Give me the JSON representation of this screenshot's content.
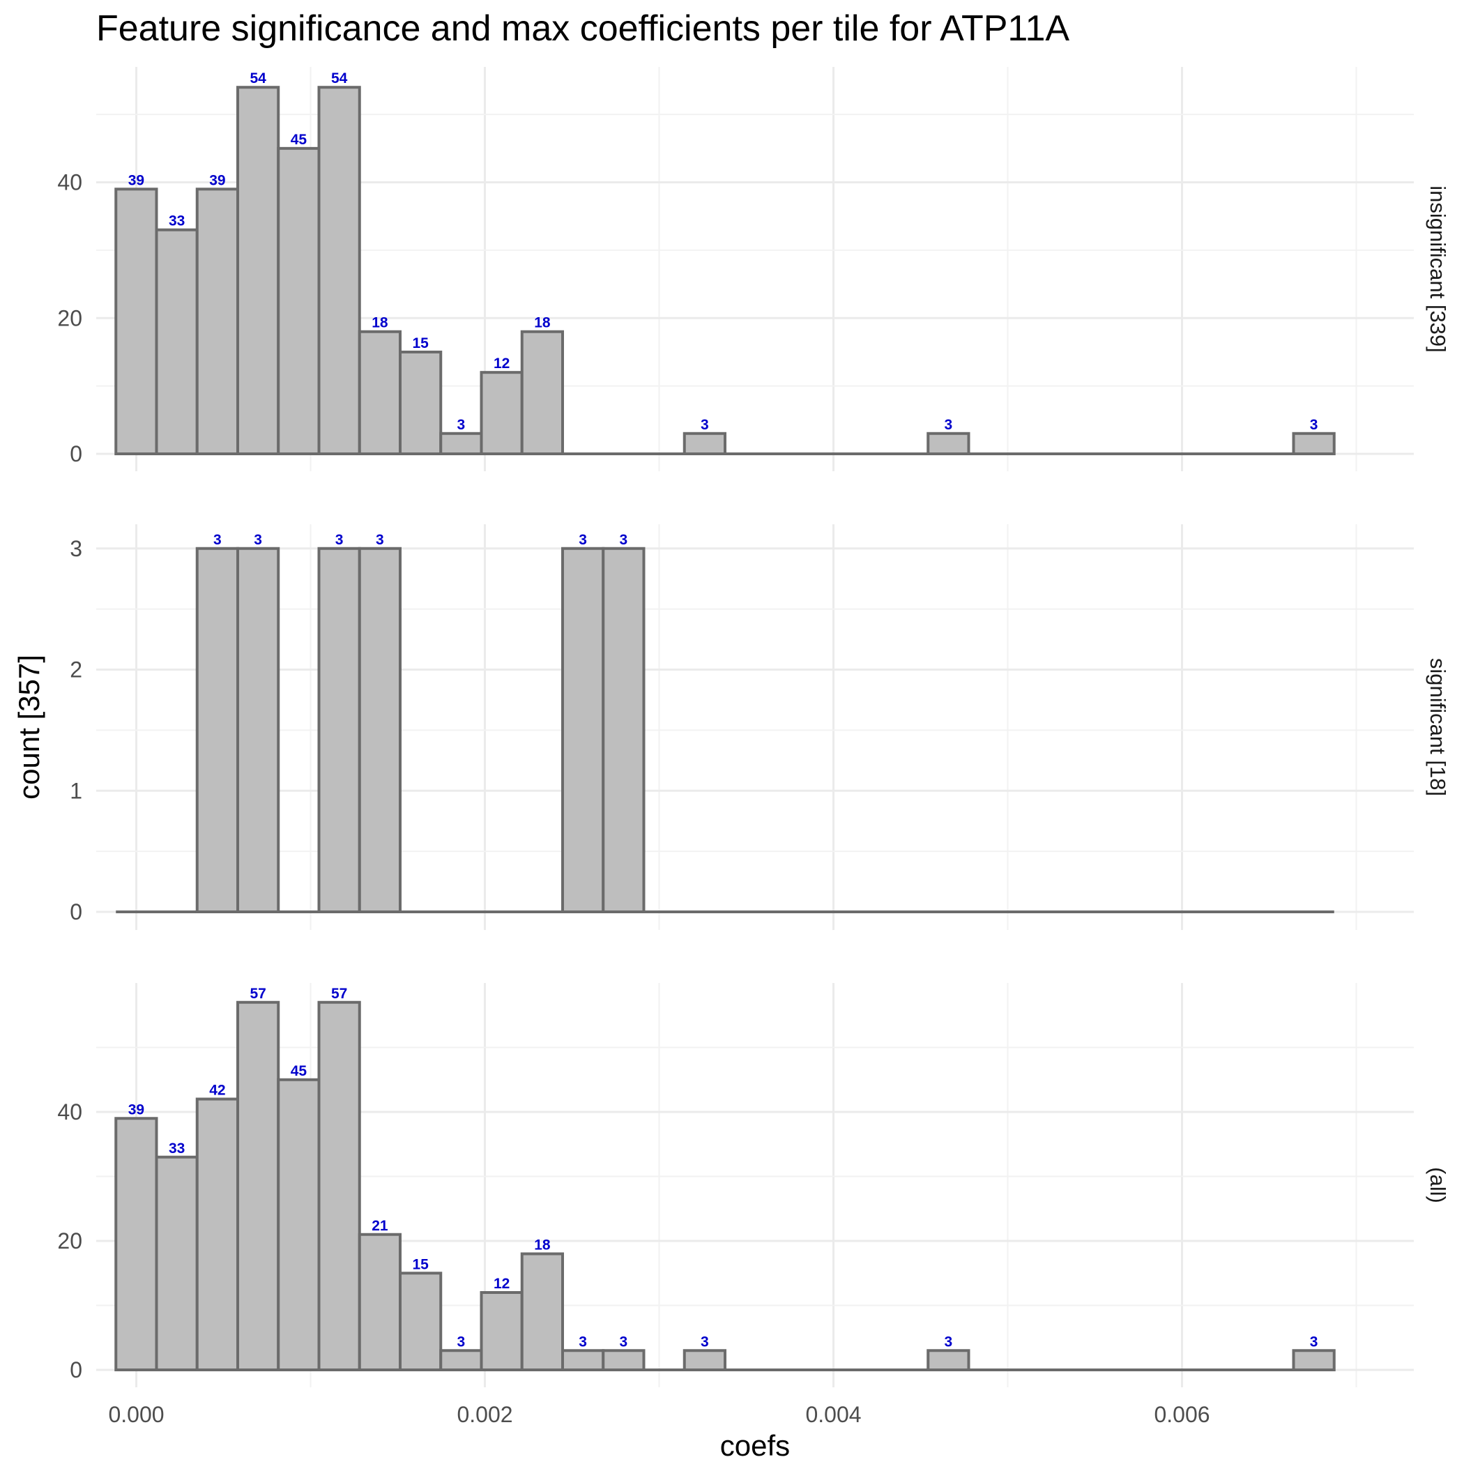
{
  "chart_data": {
    "type": "bar",
    "title": "Feature significance and max coefficients per tile for ATP11A",
    "xlabel": "coefs",
    "ylabel": "count [357]",
    "x_ticks": [
      {
        "value": 0.0,
        "label": "0.000"
      },
      {
        "value": 0.002,
        "label": "0.002"
      },
      {
        "value": 0.004,
        "label": "0.004"
      },
      {
        "value": 0.006,
        "label": "0.006"
      }
    ],
    "bin_width": 0.000233,
    "bin_start": -0.000117,
    "bin_count": 30,
    "panels": [
      {
        "strip_label": "insignificant [339]",
        "y_ticks": [
          0,
          20,
          40
        ],
        "ylim": [
          0,
          57
        ],
        "bars": [
          {
            "bin": 0,
            "count": 39
          },
          {
            "bin": 1,
            "count": 33
          },
          {
            "bin": 2,
            "count": 39
          },
          {
            "bin": 3,
            "count": 54
          },
          {
            "bin": 4,
            "count": 45
          },
          {
            "bin": 5,
            "count": 54
          },
          {
            "bin": 6,
            "count": 18
          },
          {
            "bin": 7,
            "count": 15
          },
          {
            "bin": 8,
            "count": 3
          },
          {
            "bin": 9,
            "count": 12
          },
          {
            "bin": 10,
            "count": 18
          },
          {
            "bin": 14,
            "count": 3
          },
          {
            "bin": 20,
            "count": 3
          },
          {
            "bin": 29,
            "count": 3
          }
        ]
      },
      {
        "strip_label": "significant [18]",
        "y_ticks": [
          0,
          1,
          2,
          3
        ],
        "ylim": [
          0,
          3.2
        ],
        "bars": [
          {
            "bin": 2,
            "count": 3
          },
          {
            "bin": 3,
            "count": 3
          },
          {
            "bin": 5,
            "count": 3
          },
          {
            "bin": 6,
            "count": 3
          },
          {
            "bin": 11,
            "count": 3
          },
          {
            "bin": 12,
            "count": 3
          }
        ]
      },
      {
        "strip_label": "(all)",
        "y_ticks": [
          0,
          20,
          40
        ],
        "ylim": [
          0,
          60
        ],
        "bars": [
          {
            "bin": 0,
            "count": 39
          },
          {
            "bin": 1,
            "count": 33
          },
          {
            "bin": 2,
            "count": 42
          },
          {
            "bin": 3,
            "count": 57
          },
          {
            "bin": 4,
            "count": 45
          },
          {
            "bin": 5,
            "count": 57
          },
          {
            "bin": 6,
            "count": 21
          },
          {
            "bin": 7,
            "count": 15
          },
          {
            "bin": 8,
            "count": 3
          },
          {
            "bin": 9,
            "count": 12
          },
          {
            "bin": 10,
            "count": 18
          },
          {
            "bin": 11,
            "count": 3
          },
          {
            "bin": 12,
            "count": 3
          },
          {
            "bin": 14,
            "count": 3
          },
          {
            "bin": 20,
            "count": 3
          },
          {
            "bin": 29,
            "count": 3
          }
        ]
      }
    ],
    "xlim": [
      -0.00023,
      0.00733
    ],
    "grid": true,
    "colors": {
      "bar_fill": "#bebebe",
      "bar_outline": "#6b6b6b",
      "data_label": "#0000cc"
    }
  }
}
